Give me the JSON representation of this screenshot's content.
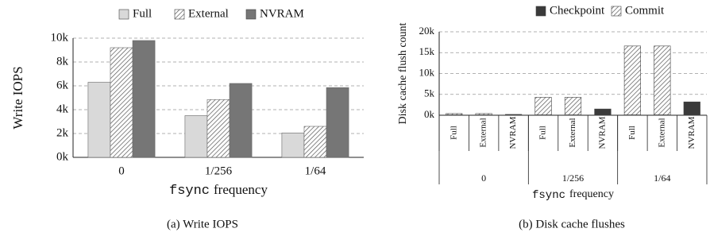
{
  "chart_data": [
    {
      "type": "grouped_bar",
      "ylabel": "Write IOPS",
      "xlabel_code": "fsync",
      "xlabel": "frequency",
      "caption": "(a) Write IOPS",
      "categories": [
        "0",
        "1/256",
        "1/64"
      ],
      "series": [
        {
          "name": "Full",
          "color": "#d9d9d9",
          "values": [
            6300,
            3500,
            2050
          ]
        },
        {
          "name": "External",
          "color": "#555555",
          "pattern": "hatch",
          "values": [
            9200,
            4850,
            2600
          ]
        },
        {
          "name": "NVRAM",
          "color": "#767676",
          "values": [
            9800,
            6200,
            5850
          ]
        }
      ],
      "ylim": [
        0,
        10000
      ],
      "yticks": [
        {
          "value": 0,
          "label": "0k"
        },
        {
          "value": 2000,
          "label": "2k"
        },
        {
          "value": 4000,
          "label": "4k"
        },
        {
          "value": 6000,
          "label": "6k"
        },
        {
          "value": 8000,
          "label": "8k"
        },
        {
          "value": 10000,
          "label": "10k"
        }
      ],
      "grid": true,
      "legend": "top"
    },
    {
      "type": "stacked_bar",
      "ylabel": "Disk cache flush count",
      "xlabel_code": "fsync",
      "xlabel": "frequency",
      "caption": "(b) Disk cache flushes",
      "categories": [
        "Full",
        "External",
        "NVRAM",
        "Full",
        "External",
        "NVRAM",
        "Full",
        "External",
        "NVRAM"
      ],
      "groups": [
        "0",
        "1/256",
        "1/64"
      ],
      "series": [
        {
          "name": "Checkpoint",
          "color": "#3a3a3a",
          "values": [
            100,
            100,
            200,
            100,
            100,
            1500,
            100,
            100,
            3200
          ]
        },
        {
          "name": "Commit",
          "color": "#555555",
          "pattern": "hatch",
          "values": [
            300,
            300,
            0,
            4200,
            4200,
            0,
            16500,
            16500,
            0
          ]
        }
      ],
      "ylim": [
        0,
        20000
      ],
      "yticks": [
        {
          "value": 0,
          "label": "0k"
        },
        {
          "value": 5000,
          "label": "5k"
        },
        {
          "value": 10000,
          "label": "10k"
        },
        {
          "value": 15000,
          "label": "15k"
        },
        {
          "value": 20000,
          "label": "20k"
        }
      ],
      "grid": true,
      "legend": "top"
    }
  ]
}
